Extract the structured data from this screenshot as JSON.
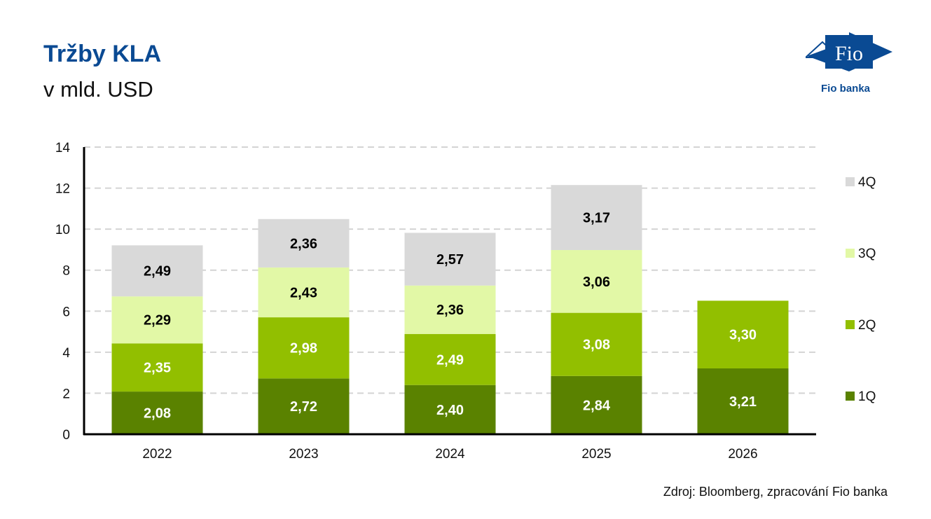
{
  "header": {
    "title": "Tržby KLA",
    "subtitle": "v mld. USD"
  },
  "logo": {
    "mark_text": "Fio",
    "brand_text": "Fio banka",
    "color": "#0a4a93"
  },
  "source": "Zdroj: Bloomberg, zpracování Fio banka",
  "chart_data": {
    "type": "bar",
    "stacked": true,
    "title": "Tržby KLA",
    "subtitle": "v mld. USD",
    "xlabel": "",
    "ylabel": "",
    "categories": [
      "2022",
      "2023",
      "2024",
      "2025",
      "2026"
    ],
    "ylim": [
      0,
      14
    ],
    "yticks": [
      0,
      2,
      4,
      6,
      8,
      10,
      12,
      14
    ],
    "grid": true,
    "legend_position": "right",
    "series": [
      {
        "name": "1Q",
        "color": "#5a8200",
        "label_color": "#ffffff",
        "values": [
          2.08,
          2.72,
          2.4,
          2.84,
          3.21
        ],
        "labels": [
          "2,08",
          "2,72",
          "2,40",
          "2,84",
          "3,21"
        ]
      },
      {
        "name": "2Q",
        "color": "#92bf00",
        "label_color": "#ffffff",
        "values": [
          2.35,
          2.98,
          2.49,
          3.08,
          3.3
        ],
        "labels": [
          "2,35",
          "2,98",
          "2,49",
          "3,08",
          "3,30"
        ]
      },
      {
        "name": "3Q",
        "color": "#e2f8a6",
        "label_color": "#000000",
        "values": [
          2.29,
          2.43,
          2.36,
          3.06,
          null
        ],
        "labels": [
          "2,29",
          "2,43",
          "2,36",
          "3,06",
          null
        ]
      },
      {
        "name": "4Q",
        "color": "#d9d9d9",
        "label_color": "#000000",
        "values": [
          2.49,
          2.36,
          2.57,
          3.17,
          null
        ],
        "labels": [
          "2,49",
          "2,36",
          "2,57",
          "3,17",
          null
        ]
      }
    ]
  }
}
